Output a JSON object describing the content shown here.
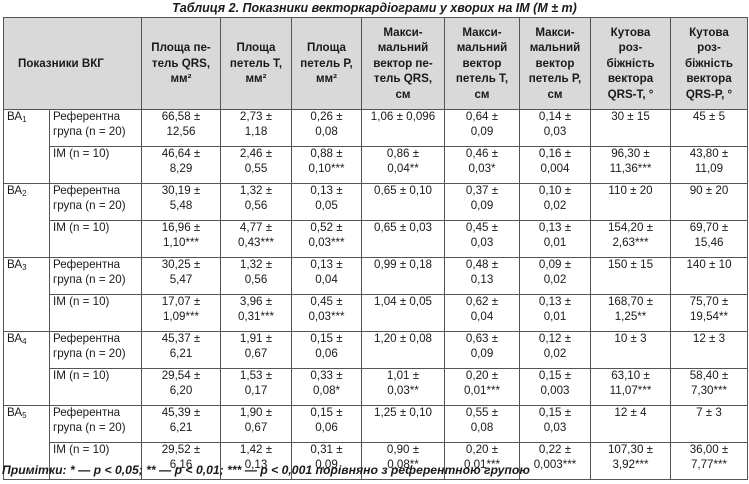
{
  "caption": "Таблиця 2. Показники векторкардіограми у хворих на ІМ (M ± m)",
  "header": {
    "indicators": "Показники ВКГ",
    "col1": "Площа пе-\nтель QRS,\nмм²",
    "col2": "Площа\nпетель T,\nмм²",
    "col3": "Площа\nпетель P,\nмм²",
    "col4": "Макси-\nмальний\nвектор пе-\nтель QRS,\nсм",
    "col5": "Макси-\nмальний\nвектор\nпетель T,\nсм",
    "col6": "Макси-\nмальний\nвектор\nпетель P,\nсм",
    "col7": "Кутова\nроз-\nбіжність\nвектора\nQRS-T, °",
    "col8": "Кутова\nроз-\nбіжність\nвектора\nQRS-P, °"
  },
  "groups": [
    {
      "ba": "ВА",
      "ba_sub": "1",
      "ref_label": "Референтна\nгрупа (n = 20)",
      "ref": [
        "66,58 ±\n12,56",
        "2,73 ±\n1,18",
        "0,26 ±\n0,08",
        "1,06 ± 0,096",
        "0,64 ±\n0,09",
        "0,14 ±\n0,03",
        "30 ± 15",
        "45 ± 5"
      ],
      "im_label": "ІМ (n = 10)",
      "im": [
        "46,64 ±\n8,29",
        "2,46 ±\n0,55",
        "0,88 ±\n0,10***",
        "0,86 ±\n0,04**",
        "0,46 ±\n0,03*",
        "0,16 ±\n0,004",
        "96,30 ±\n11,36***",
        "43,80 ±\n11,09"
      ]
    },
    {
      "ba": "ВА",
      "ba_sub": "2",
      "ref_label": "Референтна\nгрупа (n = 20)",
      "ref": [
        "30,19 ±\n5,48",
        "1,32 ±\n0,56",
        "0,13 ±\n0,05",
        "0,65 ± 0,10",
        "0,37 ±\n0,09",
        "0,10 ±\n0,02",
        "110 ± 20",
        "90 ± 20"
      ],
      "im_label": "ІМ (n = 10)",
      "im": [
        "16,96 ±\n1,10***",
        "4,77 ±\n0,43***",
        "0,52 ±\n0,03***",
        "0,65 ± 0,03",
        "0,45 ±\n0,03",
        "0,13 ±\n0,01",
        "154,20 ±\n2,63***",
        "69,70 ±\n15,46"
      ]
    },
    {
      "ba": "ВА",
      "ba_sub": "3",
      "ref_label": "Референтна\nгрупа (n = 20)",
      "ref": [
        "30,25 ±\n5,47",
        "1,32 ±\n0,56",
        "0,13 ±\n0,04",
        "0,99 ± 0,18",
        "0,48 ±\n0,13",
        "0,09 ±\n0,02",
        "150 ± 15",
        "140 ± 10"
      ],
      "im_label": "ІМ (n = 10)",
      "im": [
        "17,07 ±\n1,09***",
        "3,96 ±\n0,31***",
        "0,45 ±\n0,03***",
        "1,04 ± 0,05",
        "0,62 ±\n0,04",
        "0,13 ±\n0,01",
        "168,70 ±\n1,25**",
        "75,70 ±\n19,54**"
      ]
    },
    {
      "ba": "ВА",
      "ba_sub": "4",
      "ref_label": "Референтна\nгрупа (n = 20)",
      "ref": [
        "45,37 ±\n6,21",
        "1,91 ±\n0,67",
        "0,15 ±\n0,06",
        "1,20 ± 0,08",
        "0,63 ±\n0,09",
        "0,12 ±\n0,02",
        "10 ± 3",
        "12 ± 3"
      ],
      "im_label": "ІМ (n = 10)",
      "im": [
        "29,54 ±\n6,20",
        "1,53 ±\n0,17",
        "0,33 ±\n0,08*",
        "1,01 ±\n0,03**",
        "0,20 ±\n0,01***",
        "0,15 ±\n0,003",
        "63,10 ±\n11,07***",
        "58,40 ±\n7,30***"
      ]
    },
    {
      "ba": "ВА",
      "ba_sub": "5",
      "ref_label": "Референтна\nгрупа (n = 20)",
      "ref": [
        "45,39 ±\n6,21",
        "1,90 ±\n0,67",
        "0,15 ±\n0,06",
        "1,25 ± 0,10",
        "0,55 ±\n0,08",
        "0,15 ±\n0,03",
        "12 ± 4",
        "7 ± 3"
      ],
      "im_label": "ІМ (n = 10)",
      "im": [
        "29,52 ±\n6,16",
        "1,42 ±\n0,13",
        "0,31 ±\n0,09",
        "0,90 ±\n0,08**",
        "0,20 ±\n0,01***",
        "0,22 ±\n0,003***",
        "107,30 ±\n3,92***",
        "36,00 ±\n7,77***"
      ]
    }
  ],
  "note": "Примітки: * — р < 0,05; ** — р < 0,01; *** — р < 0,001 порівняно з референтною групою"
}
